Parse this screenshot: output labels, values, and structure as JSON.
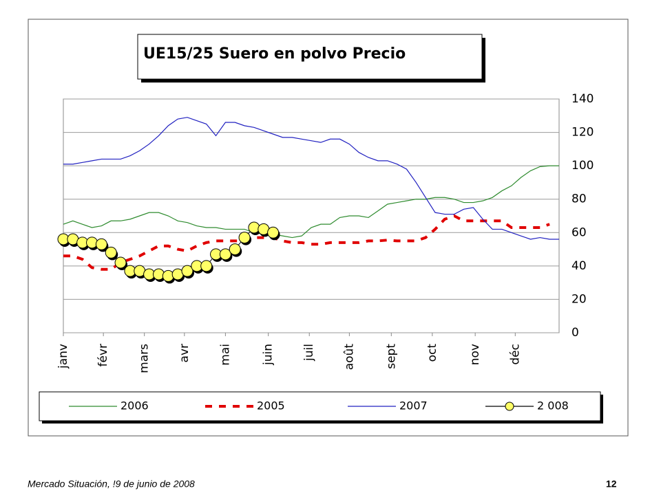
{
  "chart_data": {
    "type": "line",
    "title": "UE15/25 Suero en polvo Precio",
    "x": [
      1,
      2,
      3,
      4,
      5,
      6,
      7,
      8,
      9,
      10,
      11,
      12,
      13,
      14,
      15,
      16,
      17,
      18,
      19,
      20,
      21,
      22,
      23,
      24,
      25,
      26,
      27,
      28,
      29,
      30,
      31,
      32,
      33,
      34,
      35,
      36,
      37,
      38,
      39,
      40,
      41,
      42,
      43,
      44,
      45,
      46,
      47,
      48,
      49,
      50,
      51,
      52,
      53
    ],
    "xlim": [
      1,
      53
    ],
    "xticks": [
      {
        "value": 1,
        "label": "janv"
      },
      {
        "value": 5.2,
        "label": "févr"
      },
      {
        "value": 9.5,
        "label": "mars"
      },
      {
        "value": 13.7,
        "label": "avr"
      },
      {
        "value": 18,
        "label": "mai"
      },
      {
        "value": 22.5,
        "label": "juin"
      },
      {
        "value": 26.8,
        "label": "juil"
      },
      {
        "value": 31,
        "label": "août"
      },
      {
        "value": 35.4,
        "label": "sept"
      },
      {
        "value": 39.7,
        "label": "oct"
      },
      {
        "value": 44.2,
        "label": "nov"
      },
      {
        "value": 48.4,
        "label": "déc"
      }
    ],
    "ylim": [
      0,
      140
    ],
    "yticks": [
      0,
      20,
      40,
      60,
      80,
      100,
      120,
      140
    ],
    "grid": true,
    "legend": "bottom",
    "series": [
      {
        "name": "2006",
        "color": "#2e8b2e",
        "values": [
          65,
          67,
          65,
          63,
          64,
          67,
          67,
          68,
          70,
          72,
          72,
          70,
          67,
          66,
          64,
          63,
          63,
          62,
          62,
          62,
          60,
          59,
          59,
          58,
          57,
          58,
          63,
          65,
          65,
          69,
          70,
          70,
          69,
          73,
          77,
          78,
          79,
          80,
          80,
          81,
          81,
          80,
          78,
          78,
          79,
          81,
          85,
          88,
          93,
          97,
          99.5,
          100,
          100
        ]
      },
      {
        "name": "2005",
        "color": "#e00000",
        "dash": true,
        "values": [
          46,
          46,
          44,
          39,
          38,
          38,
          42,
          44,
          46,
          49,
          52,
          52,
          50,
          49,
          52,
          54,
          55,
          55,
          55,
          55,
          57,
          57,
          57,
          55,
          54,
          54,
          53,
          53,
          54,
          54,
          54,
          54,
          55,
          55,
          55.5,
          55,
          55,
          55,
          57,
          62,
          68,
          70,
          67,
          67,
          67,
          67,
          67,
          63,
          63,
          63,
          63,
          65,
          null
        ]
      },
      {
        "name": "2007",
        "color": "#2020c0",
        "values": [
          101,
          101,
          102,
          103,
          104,
          104,
          104,
          106,
          109,
          113,
          118,
          124,
          128,
          129,
          127,
          125,
          118,
          126,
          126,
          124,
          123,
          121,
          119,
          117,
          117,
          116,
          115,
          114,
          116,
          116,
          113,
          108,
          105,
          103,
          103,
          101,
          98,
          90,
          81,
          72,
          71,
          71,
          74,
          75,
          68,
          62,
          62,
          60,
          58,
          56,
          57,
          56,
          56
        ]
      },
      {
        "name": "2 008",
        "color": "#ffff66",
        "line_color": "#000000",
        "markers": true,
        "values": [
          56,
          56,
          54,
          54,
          53,
          48,
          42,
          37,
          37,
          35,
          35,
          34,
          35,
          37,
          40,
          40,
          47,
          47,
          50,
          57,
          63,
          62,
          60,
          null,
          null,
          null,
          null,
          null,
          null,
          null,
          null,
          null,
          null,
          null,
          null,
          null,
          null,
          null,
          null,
          null,
          null,
          null,
          null,
          null,
          null,
          null,
          null,
          null,
          null,
          null,
          null,
          null,
          null
        ]
      }
    ]
  },
  "footer": {
    "source": "Mercado Situación, !9 de junio de 2008",
    "page": "12"
  }
}
